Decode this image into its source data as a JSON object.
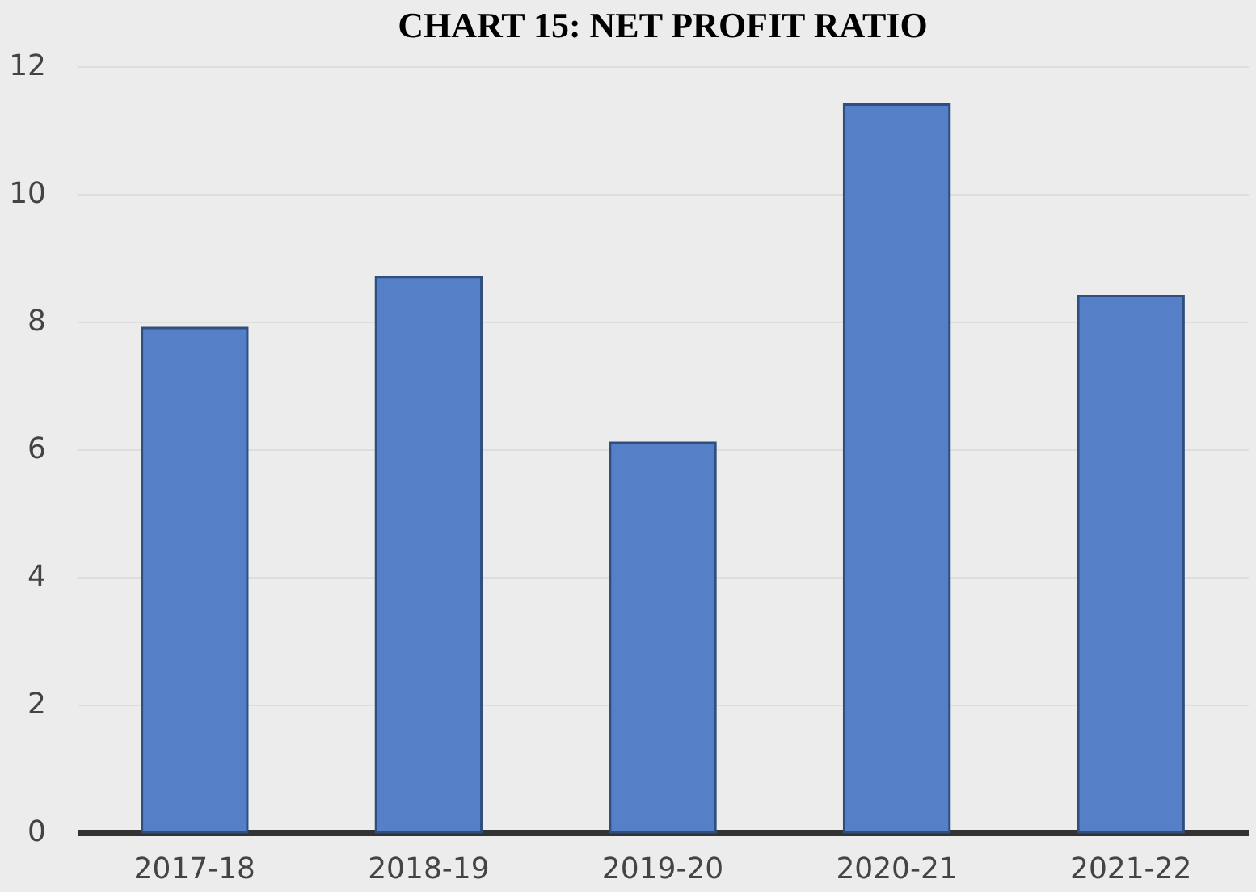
{
  "chart_data": {
    "type": "bar",
    "title": "CHART 15: NET PROFIT RATIO",
    "categories": [
      "2017-18",
      "2018-19",
      "2019-20",
      "2020-21",
      "2021-22"
    ],
    "values": [
      7.9,
      8.7,
      6.1,
      11.4,
      8.4
    ],
    "color": "#5580c8",
    "ylim": [
      0,
      12
    ],
    "yticks": [
      0,
      2,
      4,
      6,
      8,
      10,
      12
    ],
    "grid": "y"
  }
}
